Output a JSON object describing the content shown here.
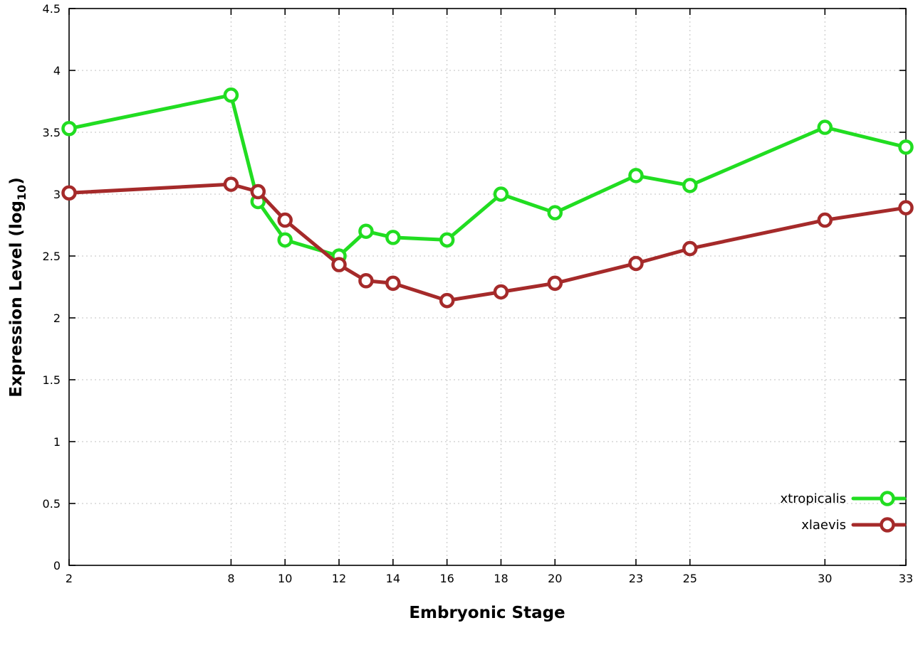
{
  "chart_data": {
    "type": "line",
    "title": "",
    "xlabel": "Embryonic Stage",
    "ylabel": "Expression Level (log10)",
    "ylabel_parts": {
      "pre": "Expression Level (log",
      "sub": "10",
      "post": ")"
    },
    "x": [
      2,
      8,
      9,
      10,
      12,
      13,
      14,
      16,
      18,
      20,
      23,
      25,
      30,
      33
    ],
    "series": [
      {
        "name": "xtropicalis",
        "color": "#21dd21",
        "values": [
          3.53,
          3.8,
          2.94,
          2.63,
          2.5,
          2.7,
          2.65,
          2.63,
          3.0,
          2.85,
          3.15,
          3.07,
          3.54,
          3.38
        ]
      },
      {
        "name": "xlaevis",
        "color": "#a52a2a",
        "values": [
          3.01,
          3.08,
          3.02,
          2.79,
          2.43,
          2.3,
          2.28,
          2.14,
          2.21,
          2.28,
          2.44,
          2.56,
          2.79,
          2.89
        ]
      }
    ],
    "xlim": [
      2,
      33
    ],
    "ylim": [
      0,
      4.5
    ],
    "xticks": [
      2,
      8,
      10,
      12,
      14,
      16,
      18,
      20,
      23,
      25,
      30,
      33
    ],
    "xtick_labels": [
      "2",
      "8",
      "10",
      "12",
      "14",
      "16",
      "18",
      "20",
      "23",
      "25",
      "30",
      "33"
    ],
    "yticks": [
      0,
      0.5,
      1,
      1.5,
      2,
      2.5,
      3,
      3.5,
      4,
      4.5
    ],
    "ytick_labels": [
      "0",
      "0.5",
      "1",
      "1.5",
      "2",
      "2.5",
      "3",
      "3.5",
      "4",
      "4.5"
    ],
    "grid": true,
    "grid_color": "#c0c0c0",
    "axis_color": "#000000",
    "background": "#ffffff",
    "marker": "open-circle",
    "legend_position": "bottom-right"
  }
}
